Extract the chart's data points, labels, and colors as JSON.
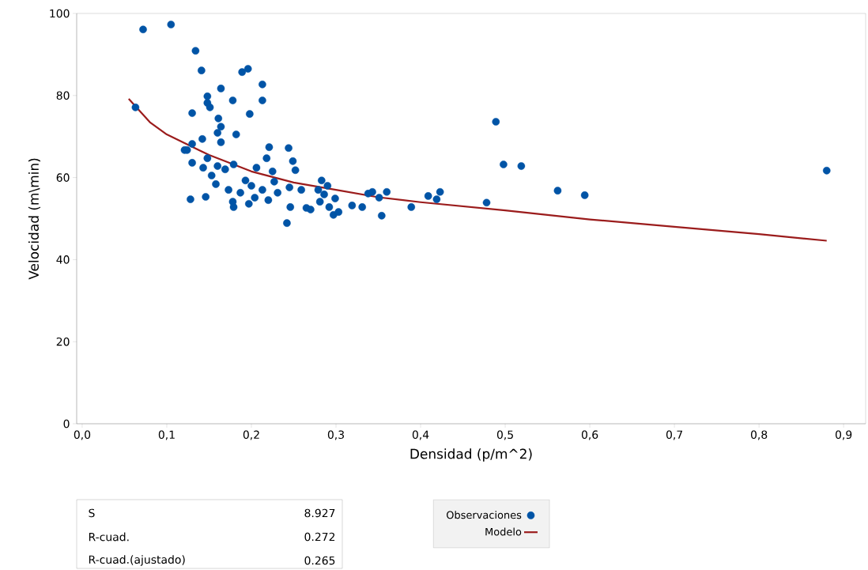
{
  "chart_data": {
    "type": "scatter",
    "xlabel": "Densidad (p/m^2)",
    "ylabel": "Velocidad (m\\min)",
    "xlim": [
      -0.0065,
      0.926
    ],
    "ylim": [
      0,
      100
    ],
    "xticks": [
      {
        "value": 0,
        "label": "0,0"
      },
      {
        "value": 0.1,
        "label": "0,1"
      },
      {
        "value": 0.2,
        "label": "0,2"
      },
      {
        "value": 0.3,
        "label": "0,3"
      },
      {
        "value": 0.4,
        "label": "0,4"
      },
      {
        "value": 0.5,
        "label": "0,5"
      },
      {
        "value": 0.6,
        "label": "0,6"
      },
      {
        "value": 0.7,
        "label": "0,7"
      },
      {
        "value": 0.8,
        "label": "0,8"
      },
      {
        "value": 0.9,
        "label": "0,9"
      }
    ],
    "yticks": [
      0,
      20,
      40,
      60,
      80,
      100
    ],
    "legend": "bottom",
    "grid": false,
    "annotations": [
      "S",
      "8.927",
      "R-cuad.",
      "0.272",
      "R-cuad.(ajustado)",
      "0.265"
    ],
    "series": [
      {
        "name": "Observaciones",
        "type": "scatter",
        "marker": "circle",
        "color": "#0054a6",
        "x": [
          0.063,
          0.072,
          0.105,
          0.134,
          0.141,
          0.13,
          0.148,
          0.148,
          0.164,
          0.151,
          0.161,
          0.164,
          0.164,
          0.16,
          0.178,
          0.189,
          0.196,
          0.213,
          0.213,
          0.198,
          0.182,
          0.142,
          0.121,
          0.13,
          0.124,
          0.13,
          0.128,
          0.146,
          0.148,
          0.143,
          0.153,
          0.16,
          0.169,
          0.179,
          0.158,
          0.173,
          0.178,
          0.179,
          0.187,
          0.193,
          0.2,
          0.204,
          0.197,
          0.206,
          0.221,
          0.218,
          0.225,
          0.227,
          0.231,
          0.213,
          0.22,
          0.242,
          0.244,
          0.249,
          0.252,
          0.245,
          0.259,
          0.246,
          0.265,
          0.27,
          0.283,
          0.279,
          0.286,
          0.29,
          0.281,
          0.292,
          0.299,
          0.297,
          0.303,
          0.319,
          0.331,
          0.338,
          0.343,
          0.351,
          0.354,
          0.36,
          0.389,
          0.409,
          0.419,
          0.423,
          0.478,
          0.489,
          0.498,
          0.519,
          0.562,
          0.594,
          0.88
        ],
        "values": [
          77.1,
          96.1,
          97.3,
          90.9,
          86.1,
          75.7,
          79.8,
          78.2,
          81.7,
          77.1,
          74.4,
          72.4,
          68.6,
          70.9,
          78.8,
          85.7,
          86.5,
          82.7,
          78.8,
          75.5,
          70.5,
          69.4,
          66.7,
          68.2,
          66.7,
          63.6,
          54.7,
          55.3,
          64.7,
          62.4,
          60.5,
          62.8,
          62.0,
          63.2,
          58.4,
          57.0,
          54.1,
          52.8,
          56.3,
          59.3,
          58.0,
          55.1,
          53.6,
          62.4,
          67.4,
          64.7,
          61.5,
          59.0,
          56.3,
          57.0,
          54.5,
          48.9,
          67.2,
          64.0,
          61.8,
          57.6,
          57.0,
          52.8,
          52.6,
          52.2,
          59.3,
          57.0,
          55.9,
          58.0,
          54.1,
          52.8,
          54.9,
          50.9,
          51.6,
          53.2,
          52.8,
          56.1,
          56.5,
          55.1,
          50.7,
          56.5,
          52.8,
          55.5,
          54.7,
          56.5,
          53.9,
          73.6,
          63.2,
          62.8,
          56.8,
          55.7,
          61.7
        ]
      },
      {
        "name": "Modelo",
        "type": "line",
        "marker": "none",
        "line_style": "solid",
        "color": "#9b1c1c",
        "x": [
          0.055,
          0.08,
          0.1,
          0.15,
          0.2,
          0.25,
          0.3,
          0.35,
          0.4,
          0.5,
          0.6,
          0.7,
          0.8,
          0.88
        ],
        "values": [
          79.2,
          73.5,
          70.5,
          65.5,
          61.5,
          58.8,
          57.0,
          55.2,
          54.0,
          52.0,
          49.8,
          48.0,
          46.2,
          44.6
        ]
      }
    ]
  }
}
